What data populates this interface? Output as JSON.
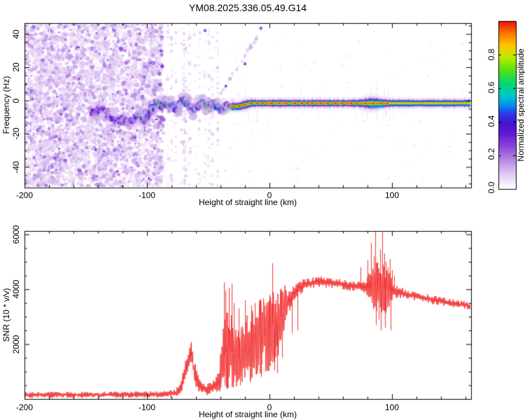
{
  "title": "YM08.2025.336.05.49.G14",
  "colors": {
    "background": "#ffffff",
    "axis": "#000000",
    "snr_trace": "#f23333"
  },
  "colormap_stops": [
    [
      0.0,
      "#ffffff"
    ],
    [
      0.04,
      "#f3eafb"
    ],
    [
      0.1,
      "#ddc2f1"
    ],
    [
      0.18,
      "#b382e2"
    ],
    [
      0.26,
      "#8a42da"
    ],
    [
      0.33,
      "#6318d4"
    ],
    [
      0.39,
      "#4413cf"
    ],
    [
      0.45,
      "#2a3ae8"
    ],
    [
      0.5,
      "#008ff0"
    ],
    [
      0.56,
      "#00c9c9"
    ],
    [
      0.63,
      "#00d773"
    ],
    [
      0.71,
      "#55e216"
    ],
    [
      0.79,
      "#c8e800"
    ],
    [
      0.86,
      "#ffc400"
    ],
    [
      0.93,
      "#ff7300"
    ],
    [
      1.0,
      "#ea1010"
    ]
  ],
  "top_panel": {
    "xlabel": "Height of straight line (km)",
    "ylabel": "Frequency (Hz)",
    "xticks": [
      -200,
      -100,
      0,
      100
    ],
    "yticks": [
      40,
      20,
      0,
      -20,
      -40
    ],
    "xminor": 20,
    "yminor": 5,
    "xlim": [
      -200,
      164.6
    ],
    "ylim": [
      -52.4,
      46.5
    ]
  },
  "bottom_panel": {
    "xlabel": "Height of straight line (km)",
    "ylabel": "SNR (10 * v/v)",
    "xticks": [
      -200,
      -100,
      0,
      100
    ],
    "yticks": [
      6000,
      4000,
      2000
    ],
    "xminor": 20,
    "yminor": 500,
    "xlim": [
      -200,
      164.6
    ],
    "ylim": [
      0,
      6122
    ]
  },
  "colorbar": {
    "label": "Normalized spectral amplitude",
    "tick_labels": [
      "0.0",
      "0.2",
      "0.4",
      "0.6",
      "0.8"
    ],
    "tick_values": [
      0,
      0.2,
      0.4,
      0.6,
      0.8
    ],
    "range": [
      0,
      1
    ]
  },
  "chart_data": [
    {
      "type": "heatmap",
      "title": "YM08.2025.336.05.49.G14",
      "xlabel": "Height of straight line (km)",
      "ylabel": "Frequency (Hz)",
      "xlim": [
        -200,
        164.6
      ],
      "ylim": [
        -52.4,
        46.5
      ],
      "colorbar_label": "Normalized spectral amplitude",
      "dense_noise_region": {
        "x_km": [
          -200,
          -87
        ],
        "freq_hz": [
          -52,
          46
        ],
        "amp": [
          0.03,
          0.32
        ]
      },
      "striped_noise_region": {
        "x_km": [
          -87,
          -45
        ],
        "freq_hz": [
          -52,
          46
        ],
        "amp": [
          0.03,
          0.14
        ]
      },
      "wiggly_trace_path": [
        [
          -145,
          -8
        ],
        [
          -138,
          -5
        ],
        [
          -132,
          -9
        ],
        [
          -126,
          -11
        ],
        [
          -120,
          -12
        ],
        [
          -114,
          -13
        ],
        [
          -108,
          -9
        ],
        [
          -103,
          -12
        ],
        [
          -100,
          -10
        ],
        [
          -97,
          -6
        ],
        [
          -94,
          -4
        ],
        [
          -91,
          -2
        ],
        [
          -88,
          -3
        ],
        [
          -85,
          -1
        ],
        [
          -82,
          -4
        ],
        [
          -79,
          -2
        ],
        [
          -76,
          -6
        ],
        [
          -73,
          -2
        ],
        [
          -70,
          0
        ],
        [
          -67,
          -2
        ],
        [
          -64,
          -4
        ],
        [
          -61,
          -6
        ],
        [
          -58,
          -2
        ],
        [
          -55,
          -1
        ],
        [
          -52,
          -3
        ],
        [
          -49,
          -4
        ],
        [
          -46,
          -2
        ],
        [
          -43,
          -4
        ],
        [
          -40,
          -5
        ],
        [
          -37,
          -3
        ],
        [
          -34,
          -4
        ],
        [
          -31,
          -3.5
        ]
      ],
      "tight_line": {
        "start_km": -31,
        "end_km": 164.6,
        "freq_hz": -2,
        "red_dash_range_km": [
          -31,
          97
        ],
        "orange_core_range_km": [
          97,
          164.6
        ],
        "broadened_bulge_km": [
          70,
          97
        ]
      },
      "diagonal_streak": {
        "from_km_hz": [
          -43,
          0
        ],
        "to_km_hz": [
          -6,
          43
        ]
      },
      "isolated_dots_km_hz": [
        [
          -52.6,
          42
        ],
        [
          -7,
          43.5
        ],
        [
          -20,
          22
        ]
      ]
    },
    {
      "type": "line",
      "xlabel": "Height of straight line (km)",
      "ylabel": "SNR (10 * v/v)",
      "xlim": [
        -200,
        164.6
      ],
      "ylim": [
        0,
        6122
      ],
      "series": [
        {
          "name": "SNR",
          "color": "#f23333",
          "envelope_x_base_noise": [
            [
              -200,
              150,
              110
            ],
            [
              -150,
              155,
              110
            ],
            [
              -120,
              160,
              115
            ],
            [
              -100,
              170,
              125
            ],
            [
              -85,
              185,
              140
            ],
            [
              -76,
              230,
              160
            ],
            [
              -72,
              420,
              260
            ],
            [
              -69,
              900,
              500
            ],
            [
              -66,
              1500,
              550
            ],
            [
              -64,
              1600,
              500
            ],
            [
              -62,
              1150,
              450
            ],
            [
              -59,
              650,
              350
            ],
            [
              -56,
              420,
              250
            ],
            [
              -52,
              330,
              200
            ],
            [
              -48,
              380,
              230
            ],
            [
              -44,
              520,
              320
            ],
            [
              -41,
              800,
              550
            ],
            [
              -38,
              1400,
              1100
            ],
            [
              -35,
              1900,
              1600
            ],
            [
              -32,
              1800,
              1500
            ],
            [
              -29,
              1500,
              1200
            ],
            [
              -26,
              1400,
              1100
            ],
            [
              -23,
              1500,
              1150
            ],
            [
              -20,
              1700,
              1250
            ],
            [
              -17,
              1850,
              1300
            ],
            [
              -14,
              2000,
              1350
            ],
            [
              -11,
              2150,
              1400
            ],
            [
              -8,
              2250,
              1400
            ],
            [
              -5,
              2300,
              1400
            ],
            [
              -2,
              2350,
              1400
            ],
            [
              0,
              2500,
              1450
            ],
            [
              2,
              2700,
              1450
            ],
            [
              4,
              2550,
              1350
            ],
            [
              6,
              2700,
              1250
            ],
            [
              8,
              2900,
              1150
            ],
            [
              10,
              3100,
              1000
            ],
            [
              12,
              3300,
              850
            ],
            [
              14,
              3450,
              700
            ],
            [
              16,
              3600,
              600
            ],
            [
              18,
              3750,
              480
            ],
            [
              20,
              3850,
              400
            ],
            [
              22,
              3950,
              340
            ],
            [
              25,
              4080,
              280
            ],
            [
              28,
              4150,
              240
            ],
            [
              32,
              4200,
              220
            ],
            [
              36,
              4250,
              210
            ],
            [
              40,
              4280,
              210
            ],
            [
              44,
              4280,
              210
            ],
            [
              48,
              4250,
              200
            ],
            [
              52,
              4220,
              200
            ],
            [
              56,
              4200,
              190
            ],
            [
              60,
              4170,
              185
            ],
            [
              64,
              4140,
              180
            ],
            [
              68,
              4110,
              180
            ],
            [
              72,
              4100,
              190
            ],
            [
              76,
              4080,
              220
            ],
            [
              79,
              4060,
              300
            ],
            [
              82,
              4050,
              600
            ],
            [
              84,
              4080,
              800
            ],
            [
              86,
              4100,
              900
            ],
            [
              88,
              4080,
              950
            ],
            [
              90,
              4070,
              1000
            ],
            [
              92,
              4060,
              1000
            ],
            [
              94,
              4030,
              950
            ],
            [
              96,
              4000,
              850
            ],
            [
              98,
              3980,
              700
            ],
            [
              100,
              3950,
              450
            ],
            [
              102,
              3920,
              260
            ],
            [
              105,
              3890,
              210
            ],
            [
              110,
              3840,
              190
            ],
            [
              115,
              3790,
              180
            ],
            [
              120,
              3740,
              175
            ],
            [
              125,
              3700,
              170
            ],
            [
              130,
              3650,
              165
            ],
            [
              135,
              3600,
              160
            ],
            [
              140,
              3560,
              155
            ],
            [
              145,
              3520,
              150
            ],
            [
              150,
              3480,
              150
            ],
            [
              155,
              3450,
              148
            ],
            [
              160,
              3420,
              145
            ],
            [
              164.6,
              3400,
              145
            ]
          ],
          "up_spikes_x_value": [
            [
              -64,
              2080
            ],
            [
              -37,
              4250
            ],
            [
              -36,
              3950
            ],
            [
              -33,
              4050
            ],
            [
              -31,
              4200
            ],
            [
              -29,
              3500
            ],
            [
              -25,
              3300
            ],
            [
              -20,
              3600
            ],
            [
              -15,
              3400
            ],
            [
              -12,
              3500
            ],
            [
              -8,
              3600
            ],
            [
              -4,
              3400
            ],
            [
              0,
              3800
            ],
            [
              2,
              4950
            ],
            [
              5,
              3600
            ],
            [
              9,
              3900
            ],
            [
              12,
              3700
            ],
            [
              74,
              4800
            ],
            [
              80,
              5050
            ],
            [
              83,
              5700
            ],
            [
              85,
              5200
            ],
            [
              86.5,
              6100
            ],
            [
              88,
              5000
            ],
            [
              90,
              5450
            ],
            [
              92,
              6250
            ],
            [
              93.5,
              5300
            ],
            [
              95,
              5000
            ],
            [
              96.5,
              4800
            ],
            [
              98,
              5100
            ],
            [
              100,
              4700
            ],
            [
              101.5,
              4500
            ]
          ],
          "down_spikes_x_value": [
            [
              -35,
              350
            ],
            [
              -30,
              420
            ],
            [
              -24,
              500
            ],
            [
              -16,
              600
            ],
            [
              -7,
              800
            ],
            [
              4,
              1050
            ],
            [
              6.5,
              950
            ],
            [
              10,
              1500
            ],
            [
              18,
              2400
            ],
            [
              23,
              2500
            ],
            [
              87,
              2700
            ],
            [
              89,
              2900
            ],
            [
              91,
              2500
            ],
            [
              94,
              2600
            ],
            [
              99,
              2500
            ]
          ]
        }
      ]
    }
  ]
}
